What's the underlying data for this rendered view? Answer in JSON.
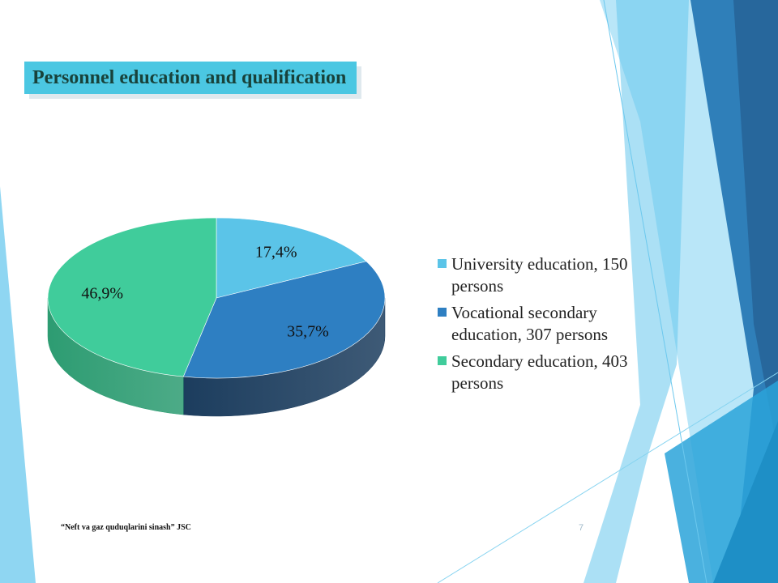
{
  "slide": {
    "title": "Personnel education and qualification",
    "footer": "“Neft va gaz quduqlarini sinash” JSC",
    "page_number": "7"
  },
  "chart_data": {
    "type": "pie",
    "title": "",
    "slices": [
      {
        "legend": "University education, 150 persons",
        "value": 150,
        "percent_label": "17,4%",
        "color": "#5bc4e8",
        "side_color": "#3a98bd"
      },
      {
        "legend": "Vocational secondary education, 307 persons",
        "value": 307,
        "percent_label": "35,7%",
        "color": "#2e7fc2",
        "side_color": "#1c3d5e"
      },
      {
        "legend": "Secondary education, 403 persons",
        "value": 403,
        "percent_label": "46,9%",
        "color": "#40cc9b",
        "side_color": "#2d9c72"
      }
    ],
    "legend_placement": "right"
  }
}
